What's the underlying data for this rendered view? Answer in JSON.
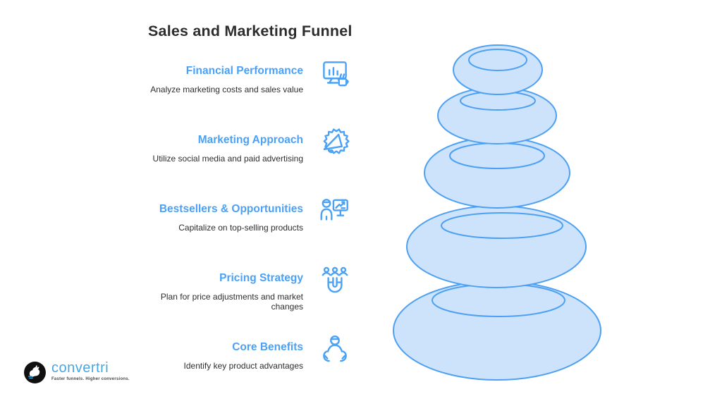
{
  "title": "Sales and Marketing Funnel",
  "colors": {
    "accent_blue": "#4aa1f5",
    "funnel_fill": "#cce3fb",
    "funnel_stroke": "#4da0f2",
    "title_text": "#2d2d2d",
    "description_text": "#2e2e2e",
    "logo_blue": "#48a7e2"
  },
  "items": [
    {
      "heading": "Financial Performance",
      "description": "Analyze marketing costs and sales value",
      "icon": "monitor-chart-icon"
    },
    {
      "heading": "Marketing Approach",
      "description": "Utilize social media and paid advertising",
      "icon": "megaphone-burst-icon"
    },
    {
      "heading": "Bestsellers & Opportunities",
      "description": "Capitalize on top-selling products",
      "icon": "presenter-board-icon"
    },
    {
      "heading": "Pricing Strategy",
      "description": "Plan for price adjustments and market\nchanges",
      "icon": "magnet-people-icon"
    },
    {
      "heading": "Core Benefits",
      "description": "Identify key product advantages",
      "icon": "care-person-icon"
    }
  ],
  "funnel": {
    "type": "stacked-pebbles",
    "levels": 5
  },
  "logo": {
    "wordmark": "convertri",
    "tagline": "Faster funnels. Higher conversions."
  }
}
